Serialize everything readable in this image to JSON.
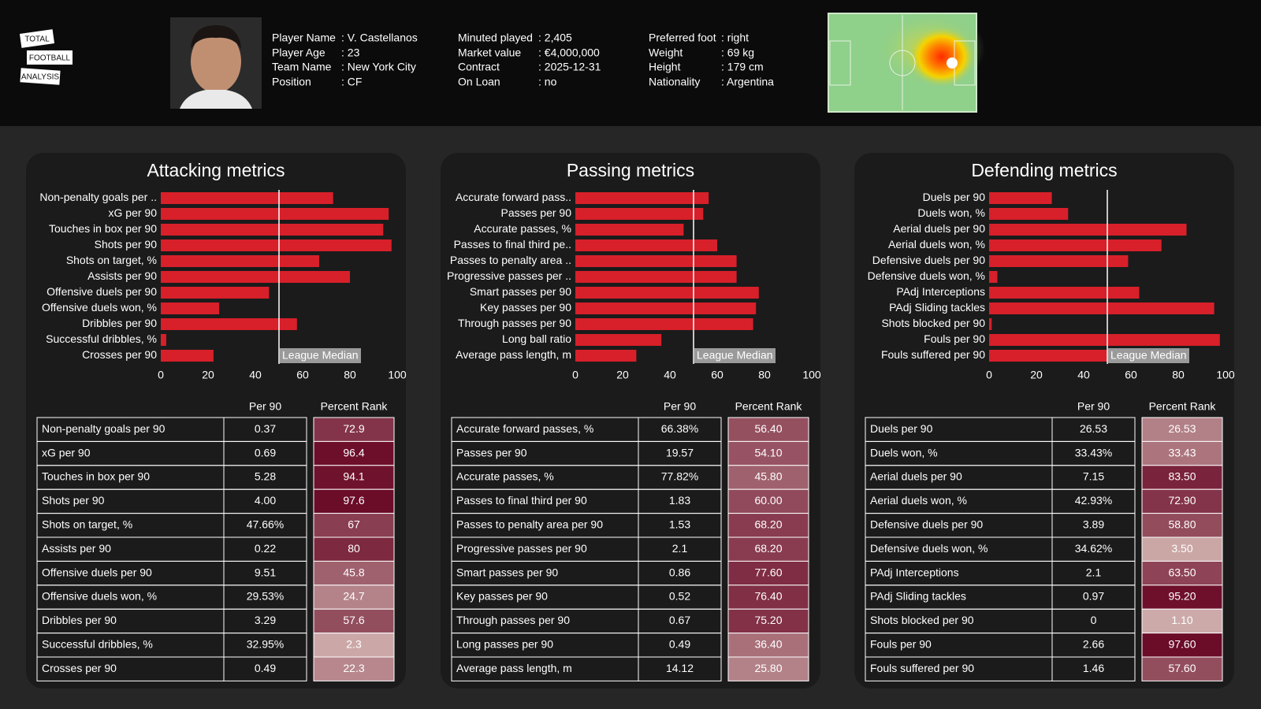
{
  "header": {
    "logo": [
      "TOTAL",
      "FOOTBALL",
      "ANALYSIS"
    ],
    "info": [
      {
        "items": [
          {
            "label": "Player Name",
            "value": ": V. Castellanos"
          },
          {
            "label": "Player Age",
            "value": ": 23"
          },
          {
            "label": "Team Name",
            "value": ": New York City"
          },
          {
            "label": "Position",
            "value": ": CF"
          }
        ]
      },
      {
        "items": [
          {
            "label": "Minuted played",
            "value": ": 2,405"
          },
          {
            "label": "Market value",
            "value": ": €4,000,000"
          },
          {
            "label": "Contract",
            "value": ": 2025-12-31"
          },
          {
            "label": "On Loan",
            "value": ": no"
          }
        ]
      },
      {
        "items": [
          {
            "label": "Preferred foot",
            "value": ": right"
          },
          {
            "label": "Weight",
            "value": ": 69 kg"
          },
          {
            "label": "Height",
            "value": ": 179 cm"
          },
          {
            "label": "Nationality",
            "value": ": Argentina"
          }
        ]
      }
    ]
  },
  "chart_data": [
    {
      "type": "barh",
      "title": "Attacking metrics",
      "color": "#d7202a",
      "categories": [
        "Non-penalty goals per ..",
        "xG per 90",
        "Touches in box per 90",
        "Shots per 90",
        "Shots on target, %",
        "Assists per 90",
        "Offensive duels per 90",
        "Offensive duels won, %",
        "Dribbles per 90",
        "Successful dribbles, %",
        "Crosses per 90"
      ],
      "values": [
        72.9,
        96.4,
        94.1,
        97.6,
        67,
        80,
        45.8,
        24.7,
        57.6,
        2.3,
        22.3
      ],
      "xlim": [
        0,
        100
      ],
      "xticks": [
        0,
        20,
        40,
        60,
        80,
        100
      ],
      "median": 50,
      "median_label": "League Median"
    },
    {
      "type": "barh",
      "title": "Passing metrics",
      "color": "#d7202a",
      "categories": [
        "Accurate forward pass..",
        "Passes per 90",
        "Accurate passes, %",
        "Passes to final third pe..",
        "Passes to penalty area ..",
        "Progressive passes per ..",
        "Smart passes per 90",
        "Key passes per 90",
        "Through passes per 90",
        "Long ball ratio",
        "Average pass length, m"
      ],
      "values": [
        56.4,
        54.1,
        45.8,
        60,
        68.2,
        68.2,
        77.6,
        76.4,
        75.2,
        36.4,
        25.8
      ],
      "xlim": [
        0,
        100
      ],
      "xticks": [
        0,
        20,
        40,
        60,
        80,
        100
      ],
      "median": 50,
      "median_label": "League Median"
    },
    {
      "type": "barh",
      "title": "Defending metrics",
      "color": "#d7202a",
      "categories": [
        "Duels per 90",
        "Duels won, %",
        "Aerial duels per 90",
        "Aerial duels won, %",
        "Defensive duels per 90",
        "Defensive duels won, %",
        "PAdj Interceptions",
        "PAdj Sliding tackles",
        "Shots blocked per 90",
        "Fouls per 90",
        "Fouls suffered per 90"
      ],
      "values": [
        26.53,
        33.43,
        83.5,
        72.9,
        58.8,
        3.5,
        63.5,
        95.2,
        1.1,
        97.6,
        57.6
      ],
      "xlim": [
        0,
        100
      ],
      "xticks": [
        0,
        20,
        40,
        60,
        80,
        100
      ],
      "median": 50,
      "median_label": "League Median"
    }
  ],
  "tables": [
    {
      "columns": [
        "Per 90",
        "Percent Rank"
      ],
      "rows": [
        [
          "Non-penalty goals per 90",
          "0.37",
          "72.9"
        ],
        [
          "xG per 90",
          "0.69",
          "96.4"
        ],
        [
          "Touches in box per 90",
          "5.28",
          "94.1"
        ],
        [
          "Shots per 90",
          "4.00",
          "97.6"
        ],
        [
          "Shots on target, %",
          "47.66%",
          "67"
        ],
        [
          "Assists per 90",
          "0.22",
          "80"
        ],
        [
          "Offensive duels per 90",
          "9.51",
          "45.8"
        ],
        [
          "Offensive duels won, %",
          "29.53%",
          "24.7"
        ],
        [
          "Dribbles per 90",
          "3.29",
          "57.6"
        ],
        [
          "Successful dribbles, %",
          "32.95%",
          "2.3"
        ],
        [
          "Crosses per 90",
          "0.49",
          "22.3"
        ]
      ]
    },
    {
      "columns": [
        "Per 90",
        "Percent Rank"
      ],
      "rows": [
        [
          "Accurate forward passes, %",
          "66.38%",
          "56.40"
        ],
        [
          "Passes per 90",
          "19.57",
          "54.10"
        ],
        [
          "Accurate passes, %",
          "77.82%",
          "45.80"
        ],
        [
          "Passes to final third per 90",
          "1.83",
          "60.00"
        ],
        [
          "Passes to penalty area per 90",
          "1.53",
          "68.20"
        ],
        [
          "Progressive passes per 90",
          "2.1",
          "68.20"
        ],
        [
          "Smart passes per 90",
          "0.86",
          "77.60"
        ],
        [
          "Key passes per 90",
          "0.52",
          "76.40"
        ],
        [
          "Through passes per 90",
          "0.67",
          "75.20"
        ],
        [
          "Long passes per 90",
          "0.49",
          "36.40"
        ],
        [
          "Average pass length, m",
          "14.12",
          "25.80"
        ]
      ]
    },
    {
      "columns": [
        "Per 90",
        "Percent Rank"
      ],
      "rows": [
        [
          "Duels per 90",
          "26.53",
          "26.53"
        ],
        [
          "Duels won, %",
          "33.43%",
          "33.43"
        ],
        [
          "Aerial duels per 90",
          "7.15",
          "83.50"
        ],
        [
          "Aerial duels won, %",
          "42.93%",
          "72.90"
        ],
        [
          "Defensive duels per 90",
          "3.89",
          "58.80"
        ],
        [
          "Defensive duels won, %",
          "34.62%",
          "3.50"
        ],
        [
          "PAdj Interceptions",
          "2.1",
          "63.50"
        ],
        [
          "PAdj Sliding tackles",
          "0.97",
          "95.20"
        ],
        [
          "Shots blocked per 90",
          "0",
          "1.10"
        ],
        [
          "Fouls per 90",
          "2.66",
          "97.60"
        ],
        [
          "Fouls suffered per 90",
          "1.46",
          "57.60"
        ]
      ]
    }
  ]
}
